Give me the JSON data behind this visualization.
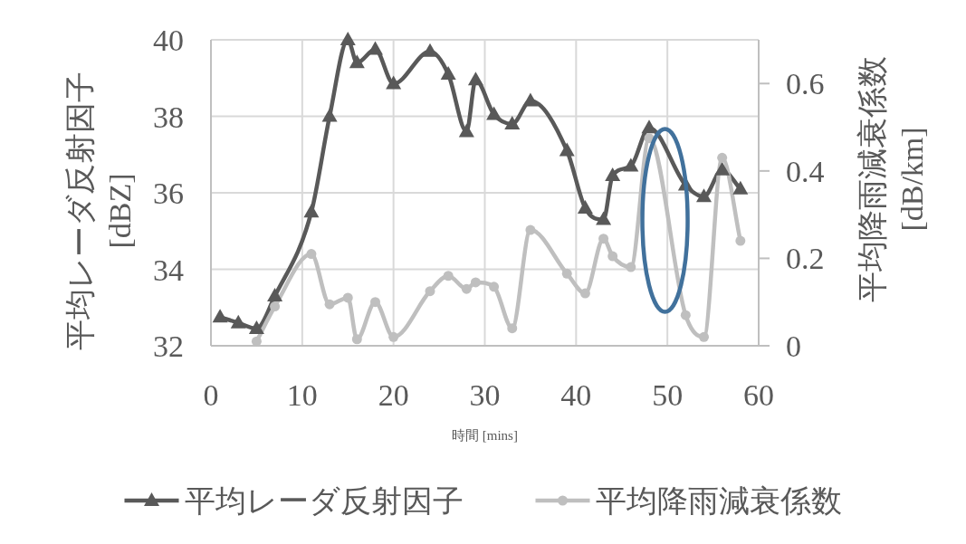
{
  "chart_data": {
    "type": "line",
    "xlabel": "時間 [mins]",
    "ylabel": "平均レーダ反射因子\n[dBZ]",
    "y2label": "平均降雨減衰係数\n[dB/km]",
    "xlim": [
      0,
      60
    ],
    "xticks": [
      0,
      10,
      20,
      30,
      40,
      50,
      60
    ],
    "ylim": [
      32,
      40
    ],
    "yticks": [
      32,
      34,
      36,
      38,
      40
    ],
    "y2lim": [
      0,
      0.7
    ],
    "y2ticks": [
      0,
      0.2,
      0.4,
      0.6
    ],
    "grid": true,
    "legend": "bottom",
    "line_style": "solid",
    "series": [
      {
        "name": "平均レーダ反射因子",
        "color": "#595959",
        "marker": "triangle",
        "x": [
          1,
          3,
          5,
          7,
          11,
          13,
          15,
          16,
          18,
          20,
          24,
          26,
          28,
          29,
          31,
          33,
          35,
          39,
          41,
          43,
          44,
          46,
          48,
          52,
          54,
          56,
          58
        ],
        "values": [
          32.75,
          32.6,
          32.45,
          33.3,
          35.5,
          38.0,
          40.0,
          39.4,
          39.75,
          38.85,
          39.7,
          39.1,
          37.6,
          38.95,
          38.05,
          37.8,
          38.4,
          37.1,
          35.6,
          35.3,
          36.45,
          36.7,
          37.7,
          36.2,
          35.9,
          36.6,
          36.1
        ]
      },
      {
        "name": "平均降雨減衰係数",
        "color": "#bfbfbf",
        "marker": "circle",
        "axis": "y2",
        "x": [
          5,
          7,
          11,
          13,
          15,
          16,
          18,
          20,
          24,
          26,
          28,
          29,
          31,
          33,
          35,
          39,
          41,
          43,
          44,
          46,
          48,
          52,
          54,
          56,
          58
        ],
        "values": [
          0.01,
          0.09,
          0.21,
          0.095,
          0.11,
          0.015,
          0.1,
          0.02,
          0.125,
          0.16,
          0.13,
          0.145,
          0.135,
          0.04,
          0.265,
          0.165,
          0.12,
          0.245,
          0.205,
          0.18,
          0.475,
          0.07,
          0.02,
          0.43,
          0.24
        ]
      }
    ]
  }
}
